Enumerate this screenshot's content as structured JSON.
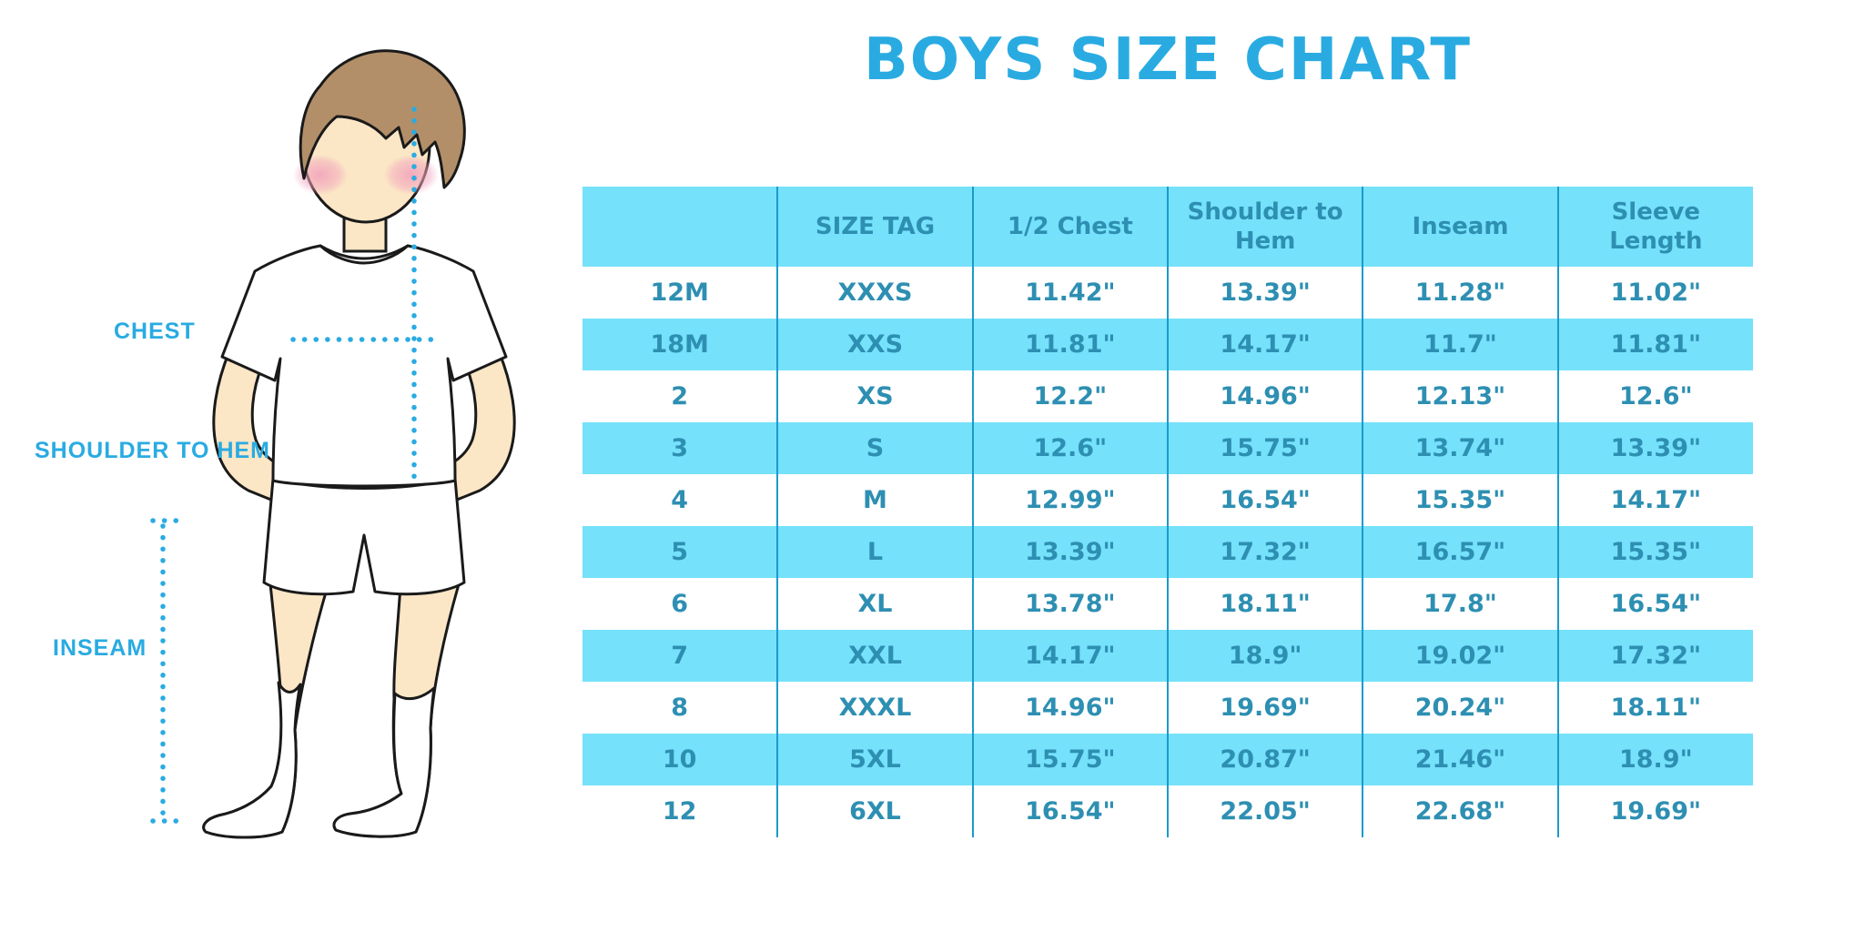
{
  "title": "BOYS SIZE CHART",
  "figure": {
    "chest_label": "CHEST",
    "shoulder_to_hem_label": "SHOULDER TO HEM",
    "inseam_label": "INSEAM"
  },
  "colors": {
    "accent_blue": "#29ABE2",
    "table_stripe_blue": "#75E1FB",
    "table_divider_blue": "#1B9BCB",
    "table_text_blue": "#2D8FB2",
    "hair_brown": "#B28F68",
    "skin_tone": "#FBE6C6",
    "blush_pink": "#F2A3BC"
  },
  "chart_data": {
    "type": "table",
    "title": "BOYS SIZE CHART",
    "columns": [
      "",
      "SIZE TAG",
      "1/2 Chest",
      "Shoulder to Hem",
      "Inseam",
      "Sleeve Length"
    ],
    "rows": [
      [
        "12M",
        "XXXS",
        "11.42\"",
        "13.39\"",
        "11.28\"",
        "11.02\""
      ],
      [
        "18M",
        "XXS",
        "11.81\"",
        "14.17\"",
        "11.7\"",
        "11.81\""
      ],
      [
        "2",
        "XS",
        "12.2\"",
        "14.96\"",
        "12.13\"",
        "12.6\""
      ],
      [
        "3",
        "S",
        "12.6\"",
        "15.75\"",
        "13.74\"",
        "13.39\""
      ],
      [
        "4",
        "M",
        "12.99\"",
        "16.54\"",
        "15.35\"",
        "14.17\""
      ],
      [
        "5",
        "L",
        "13.39\"",
        "17.32\"",
        "16.57\"",
        "15.35\""
      ],
      [
        "6",
        "XL",
        "13.78\"",
        "18.11\"",
        "17.8\"",
        "16.54\""
      ],
      [
        "7",
        "XXL",
        "14.17\"",
        "18.9\"",
        "19.02\"",
        "17.32\""
      ],
      [
        "8",
        "XXXL",
        "14.96\"",
        "19.69\"",
        "20.24\"",
        "18.11\""
      ],
      [
        "10",
        "5XL",
        "15.75\"",
        "20.87\"",
        "21.46\"",
        "18.9\""
      ],
      [
        "12",
        "6XL",
        "16.54\"",
        "22.05\"",
        "22.68\"",
        "19.69\""
      ]
    ],
    "layout": {
      "header_fill": "#75E1FB",
      "zebra_stripes": true,
      "vertical_dividers_only": true
    }
  }
}
